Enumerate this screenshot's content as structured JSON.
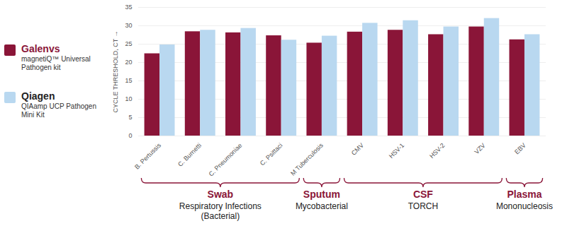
{
  "chart_data": {
    "type": "bar",
    "y_label": "CYCLE THRESHOLD, CT",
    "categories": [
      "B. Pertussis",
      "C. Burnetti",
      "C. Pneumoniae",
      "C. Psittaci",
      "M Tuberculosis",
      "CMV",
      "HSV-1",
      "HSV-2",
      "VZV",
      "EBV"
    ],
    "series": [
      {
        "name": "Galenvs",
        "product": "magnetiQ™ Universal Pathogen kit",
        "color": "#8a1538",
        "values": [
          22.4,
          28.4,
          28.1,
          27.3,
          25.3,
          28.3,
          28.8,
          27.6,
          29.7,
          26.2
        ]
      },
      {
        "name": "Qiagen",
        "product": "QIAamp UCP Pathogen Mini Kit",
        "color": "#b9d8f0",
        "values": [
          24.8,
          28.8,
          29.3,
          26.1,
          27.2,
          30.7,
          31.4,
          29.7,
          32.0,
          27.6
        ]
      }
    ],
    "ylim": [
      0,
      35
    ],
    "yticks": [
      0,
      5,
      10,
      15,
      20,
      25,
      30,
      35
    ],
    "grid": true,
    "legend": "left",
    "groups": [
      {
        "label": "Swab",
        "description": [
          "Respiratory Infections",
          "(Bacterial)"
        ],
        "categories": [
          "B. Pertussis",
          "C. Burnetti",
          "C. Pneumoniae",
          "C. Psittaci"
        ]
      },
      {
        "label": "Sputum",
        "description": [
          "Mycobacterial"
        ],
        "categories": [
          "M Tuberculosis"
        ]
      },
      {
        "label": "CSF",
        "description": [
          "TORCH"
        ],
        "categories": [
          "CMV",
          "HSV-1",
          "HSV-2",
          "VZV"
        ]
      },
      {
        "label": "Plasma",
        "description": [
          "Mononucleosis"
        ],
        "categories": [
          "EBV"
        ]
      }
    ]
  }
}
